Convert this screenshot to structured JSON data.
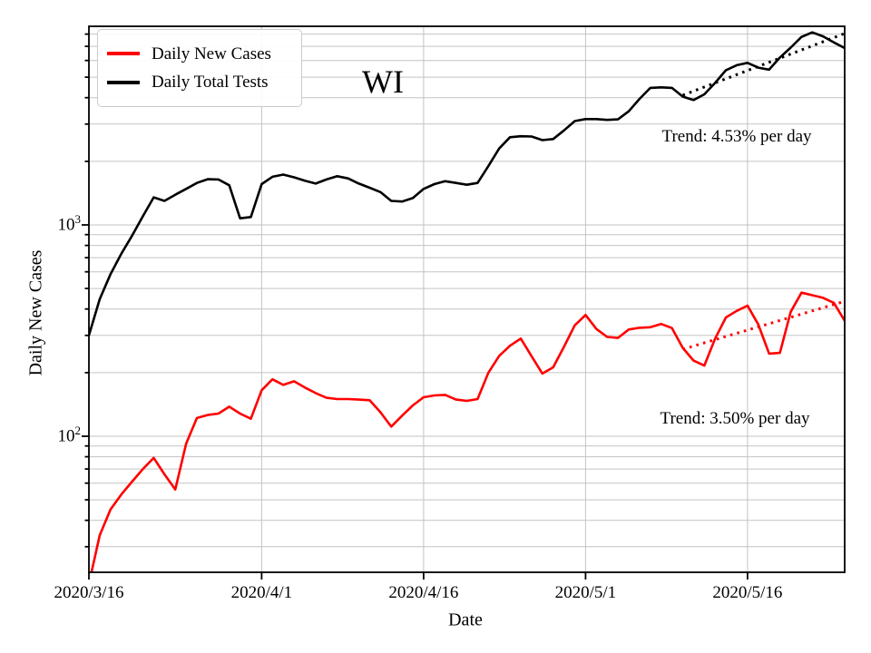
{
  "figure_title": "WI",
  "chart_data": {
    "type": "line",
    "title": "WI",
    "xlabel": "Date",
    "ylabel": "Daily New Cases",
    "yscale": "log",
    "ylim": [
      22.7,
      8710
    ],
    "xlim_days": [
      0,
      70
    ],
    "grid": true,
    "grid_color": "#c3c3c3",
    "x_ticks": [
      {
        "label": "2020/3/16",
        "day": 0
      },
      {
        "label": "2020/4/1",
        "day": 16
      },
      {
        "label": "2020/4/16",
        "day": 31
      },
      {
        "label": "2020/5/1",
        "day": 46
      },
      {
        "label": "2020/5/16",
        "day": 61
      }
    ],
    "y_ticks": [
      {
        "base": "10",
        "exp": "3",
        "value": 1000
      },
      {
        "base": "10",
        "exp": "2",
        "value": 100
      }
    ],
    "legend": {
      "position": "upper left",
      "entries": [
        {
          "label": "Daily New Cases",
          "color": "#ff0000"
        },
        {
          "label": "Daily Total Tests",
          "color": "#000000"
        }
      ]
    },
    "annotations": [
      {
        "text": "Trend: 4.53% per day",
        "series": "Daily Total Tests"
      },
      {
        "text": "Trend: 3.50% per day",
        "series": "Daily New Cases"
      }
    ],
    "dates": [
      "2020/3/16",
      "2020/3/17",
      "2020/3/18",
      "2020/3/19",
      "2020/3/20",
      "2020/3/21",
      "2020/3/22",
      "2020/3/23",
      "2020/3/24",
      "2020/3/25",
      "2020/3/26",
      "2020/3/27",
      "2020/3/28",
      "2020/3/29",
      "2020/3/30",
      "2020/3/31",
      "2020/4/1",
      "2020/4/2",
      "2020/4/3",
      "2020/4/4",
      "2020/4/5",
      "2020/4/6",
      "2020/4/7",
      "2020/4/8",
      "2020/4/9",
      "2020/4/10",
      "2020/4/11",
      "2020/4/12",
      "2020/4/13",
      "2020/4/14",
      "2020/4/15",
      "2020/4/16",
      "2020/4/17",
      "2020/4/18",
      "2020/4/19",
      "2020/4/20",
      "2020/4/21",
      "2020/4/22",
      "2020/4/23",
      "2020/4/24",
      "2020/4/25",
      "2020/4/26",
      "2020/4/27",
      "2020/4/28",
      "2020/4/29",
      "2020/4/30",
      "2020/5/1",
      "2020/5/2",
      "2020/5/3",
      "2020/5/4",
      "2020/5/5",
      "2020/5/6",
      "2020/5/7",
      "2020/5/8",
      "2020/5/9",
      "2020/5/10",
      "2020/5/11",
      "2020/5/12",
      "2020/5/13",
      "2020/5/14",
      "2020/5/15",
      "2020/5/16",
      "2020/5/17",
      "2020/5/18",
      "2020/5/19",
      "2020/5/20",
      "2020/5/21",
      "2020/5/22",
      "2020/5/23",
      "2020/5/24",
      "2020/5/25"
    ],
    "series": [
      {
        "name": "Daily New Cases",
        "color": "#ff0000",
        "values": [
          20,
          34,
          45,
          53,
          61,
          70,
          79,
          66,
          56,
          92,
          122,
          126,
          128,
          138,
          128,
          121,
          165,
          186,
          175,
          182,
          170,
          160,
          152,
          150,
          150,
          149,
          148,
          130,
          111,
          125,
          140,
          153,
          156,
          157,
          149,
          147,
          150,
          200,
          240,
          268,
          290,
          239,
          198,
          212,
          265,
          335,
          375,
          322,
          295,
          292,
          320,
          326,
          328,
          340,
          325,
          262,
          228,
          216,
          290,
          365,
          392,
          415,
          338,
          246,
          248,
          388,
          478,
          465,
          452,
          428,
          352
        ]
      },
      {
        "name": "Daily Total Tests",
        "color": "#000000",
        "values": [
          300,
          445,
          585,
          730,
          890,
          1100,
          1350,
          1300,
          1390,
          1480,
          1580,
          1645,
          1640,
          1540,
          1075,
          1090,
          1560,
          1690,
          1730,
          1680,
          1620,
          1570,
          1640,
          1700,
          1660,
          1570,
          1500,
          1430,
          1300,
          1290,
          1340,
          1480,
          1560,
          1610,
          1580,
          1550,
          1580,
          1900,
          2300,
          2600,
          2630,
          2620,
          2520,
          2550,
          2800,
          3100,
          3170,
          3170,
          3140,
          3160,
          3450,
          3950,
          4450,
          4480,
          4450,
          4050,
          3900,
          4150,
          4700,
          5400,
          5700,
          5850,
          5550,
          5430,
          6200,
          6900,
          7760,
          8150,
          7800,
          7300,
          6870
        ]
      }
    ],
    "trend_lines": [
      {
        "series": "Daily Total Tests",
        "rate_pct_per_day": 4.53,
        "start_day": 55,
        "end_day": 70,
        "start_value": 4110,
        "end_value": 8050,
        "color": "#000000",
        "style": "dotted"
      },
      {
        "series": "Daily New Cases",
        "rate_pct_per_day": 3.5,
        "start_day": 55,
        "end_day": 70,
        "start_value": 258,
        "end_value": 435,
        "color": "#ff0000",
        "style": "dotted"
      }
    ]
  }
}
